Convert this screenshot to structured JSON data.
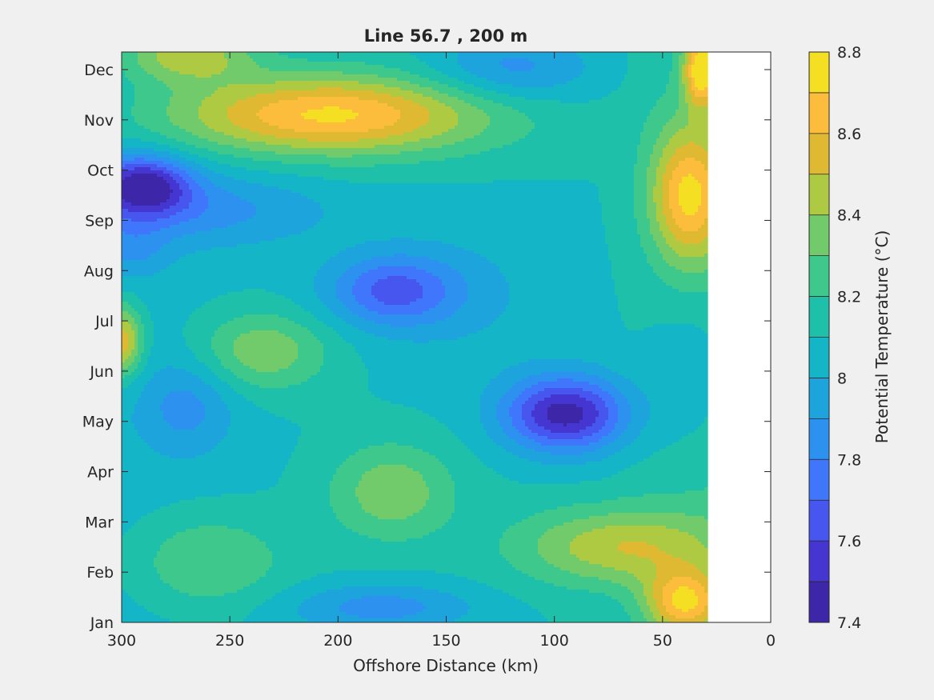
{
  "chart_data": {
    "type": "heatmap",
    "subtype": "filled-contour",
    "title": "Line 56.7 , 200 m",
    "xlabel": "Offshore Distance (km)",
    "ylabel": "",
    "x_direction": "reversed",
    "xlim": [
      300,
      0
    ],
    "xticks": [
      300,
      250,
      200,
      150,
      100,
      50,
      0
    ],
    "xtick_labels": [
      "300",
      "250",
      "200",
      "150",
      "100",
      "50",
      "0"
    ],
    "ylim": [
      0,
      11.35
    ],
    "yticks": [
      0,
      1,
      2,
      3,
      4,
      5,
      6,
      7,
      8,
      9,
      10,
      11
    ],
    "ytick_labels": [
      "Jan",
      "Feb",
      "Mar",
      "Apr",
      "May",
      "Jun",
      "Jul",
      "Aug",
      "Sep",
      "Oct",
      "Nov",
      "Dec"
    ],
    "data_extent_x": [
      300,
      30
    ],
    "colorbar": {
      "label": "Potential Temperature (°C)",
      "range": [
        7.4,
        8.8
      ],
      "levels": [
        7.4,
        7.5,
        7.6,
        7.7,
        7.8,
        7.9,
        8.0,
        8.1,
        8.2,
        8.3,
        8.4,
        8.5,
        8.6,
        8.7,
        8.8
      ],
      "ticks": [
        7.4,
        7.6,
        7.8,
        8.0,
        8.2,
        8.4,
        8.6,
        8.8
      ],
      "tick_labels": [
        "7.4",
        "7.6",
        "7.8",
        "8",
        "8.2",
        "8.4",
        "8.6",
        "8.8"
      ],
      "colors": [
        "#3e26a8",
        "#4536d1",
        "#4756ee",
        "#3f76fb",
        "#2d91f0",
        "#1ea4dd",
        "#13b5c7",
        "#1fc0aa",
        "#3ec88b",
        "#72cb6b",
        "#aec942",
        "#dfb932",
        "#fdbd3c",
        "#f5df23"
      ]
    },
    "features": [
      {
        "x": 290,
        "y": 8.7,
        "rx": 28,
        "ry": 0.75,
        "value": 7.45
      },
      {
        "x": 295,
        "y": 7.4,
        "rx": 22,
        "ry": 0.7,
        "value": 7.9
      },
      {
        "x": 265,
        "y": 8.2,
        "rx": 80,
        "ry": 0.9,
        "value": 7.85
      },
      {
        "x": 175,
        "y": 6.6,
        "rx": 38,
        "ry": 0.9,
        "value": 7.7
      },
      {
        "x": 95,
        "y": 4.15,
        "rx": 36,
        "ry": 0.95,
        "value": 7.45
      },
      {
        "x": 120,
        "y": 11.0,
        "rx": 48,
        "ry": 0.85,
        "value": 7.85
      },
      {
        "x": 270,
        "y": 4.3,
        "rx": 28,
        "ry": 1.2,
        "value": 7.85
      },
      {
        "x": 180,
        "y": 0.3,
        "rx": 55,
        "ry": 0.6,
        "value": 7.85
      },
      {
        "x": 205,
        "y": 10.1,
        "rx": 95,
        "ry": 1.0,
        "value": 8.72
      },
      {
        "x": 38,
        "y": 8.5,
        "rx": 22,
        "ry": 1.7,
        "value": 8.75
      },
      {
        "x": 32,
        "y": 11.0,
        "rx": 10,
        "ry": 0.9,
        "value": 8.85
      },
      {
        "x": 70,
        "y": 1.5,
        "rx": 60,
        "ry": 1.0,
        "value": 8.5
      },
      {
        "x": 40,
        "y": 0.4,
        "rx": 22,
        "ry": 0.8,
        "value": 8.72
      },
      {
        "x": 235,
        "y": 5.4,
        "rx": 38,
        "ry": 1.0,
        "value": 8.38
      },
      {
        "x": 175,
        "y": 2.6,
        "rx": 36,
        "ry": 1.2,
        "value": 8.38
      },
      {
        "x": 270,
        "y": 11.3,
        "rx": 40,
        "ry": 0.7,
        "value": 8.45
      },
      {
        "x": 260,
        "y": 1.2,
        "rx": 45,
        "ry": 1.2,
        "value": 8.3
      },
      {
        "x": 300,
        "y": 5.6,
        "rx": 12,
        "ry": 0.9,
        "value": 8.55
      },
      {
        "x": 140,
        "y": 6.5,
        "rx": 60,
        "ry": 2.0,
        "value": 8.0
      },
      {
        "x": 35,
        "y": 5.0,
        "rx": 30,
        "ry": 2.0,
        "value": 8.05
      }
    ]
  }
}
